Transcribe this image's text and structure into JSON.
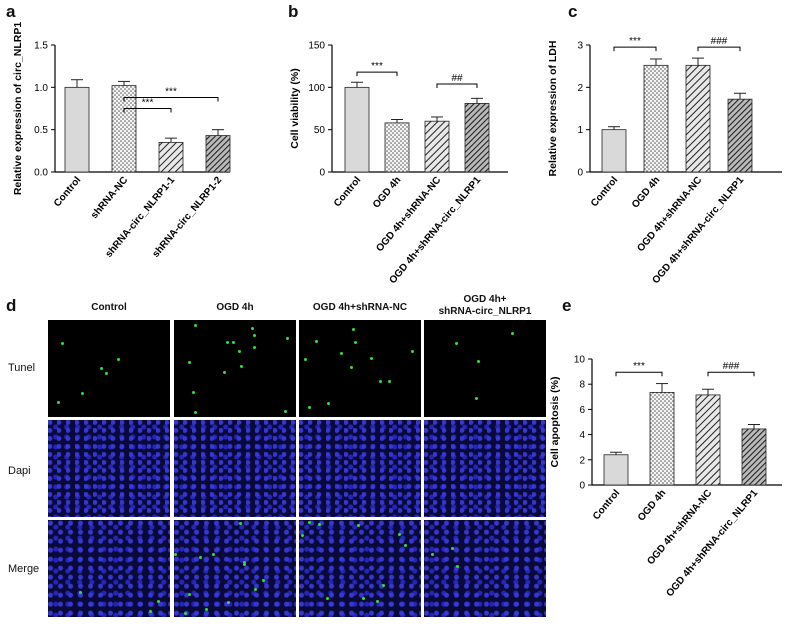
{
  "panels": {
    "a": "a",
    "b": "b",
    "c": "c",
    "d": "d",
    "e": "e"
  },
  "chart_data": [
    {
      "id": "a",
      "type": "bar",
      "ylabel": "Relative  expression of circ_NLRP1",
      "ylim": [
        0,
        1.5
      ],
      "yticks": [
        "0.0",
        "0.5",
        "1.0",
        "1.5"
      ],
      "categories": [
        "Control",
        "shRNA-NC",
        "shRNA-circ_NLRP1-1",
        "shRNA-circ_NLRP1-2"
      ],
      "values": [
        1.0,
        1.02,
        0.35,
        0.43
      ],
      "errors": [
        0.09,
        0.05,
        0.05,
        0.07
      ],
      "patterns": [
        "solid",
        "dots",
        "hatch",
        "crosshatch"
      ],
      "annotations": [
        {
          "from": 1,
          "to": 2,
          "label": "***",
          "y": 0.75
        },
        {
          "from": 1,
          "to": 3,
          "label": "***",
          "y": 0.88
        }
      ]
    },
    {
      "id": "b",
      "type": "bar",
      "ylabel": "Cell viability (%)",
      "ylim": [
        0,
        150
      ],
      "yticks": [
        "0",
        "50",
        "100",
        "150"
      ],
      "categories": [
        "Control",
        "OGD 4h",
        "OGD 4h+shRNA-NC",
        "OGD 4h+shRNA-circ_NLRP1"
      ],
      "values": [
        100,
        58,
        60,
        81
      ],
      "errors": [
        6,
        4,
        5,
        6
      ],
      "patterns": [
        "solid",
        "dots",
        "hatch",
        "crosshatch"
      ],
      "annotations": [
        {
          "from": 0,
          "to": 1,
          "label": "***",
          "y": 118
        },
        {
          "from": 2,
          "to": 3,
          "label": "##",
          "y": 104
        }
      ]
    },
    {
      "id": "c",
      "type": "bar",
      "ylabel": "Relative expression of LDH",
      "ylim": [
        0,
        3
      ],
      "yticks": [
        "0",
        "1",
        "2",
        "3"
      ],
      "categories": [
        "Control",
        "OGD 4h",
        "OGD 4h+shRNA-NC",
        "OGD 4h+shRNA-circ_NLRP1"
      ],
      "values": [
        1.0,
        2.52,
        2.52,
        1.72
      ],
      "errors": [
        0.07,
        0.15,
        0.17,
        0.14
      ],
      "patterns": [
        "solid",
        "dots",
        "hatch",
        "crosshatch"
      ],
      "annotations": [
        {
          "from": 0,
          "to": 1,
          "label": "***",
          "y": 2.95
        },
        {
          "from": 2,
          "to": 3,
          "label": "###",
          "y": 2.95
        }
      ]
    },
    {
      "id": "e",
      "type": "bar",
      "ylabel": "Cell apoptosis (%)",
      "ylim": [
        0,
        10
      ],
      "yticks": [
        "0",
        "2",
        "4",
        "6",
        "8",
        "10"
      ],
      "categories": [
        "Control",
        "OGD 4h",
        "OGD 4h+shRNA-NC",
        "OGD 4h+shRNA-circ_NLRP1"
      ],
      "values": [
        2.4,
        7.35,
        7.15,
        4.45
      ],
      "errors": [
        0.2,
        0.7,
        0.45,
        0.35
      ],
      "patterns": [
        "solid",
        "dots",
        "hatch",
        "crosshatch"
      ],
      "annotations": [
        {
          "from": 0,
          "to": 1,
          "label": "***",
          "y": 8.95
        },
        {
          "from": 2,
          "to": 3,
          "label": "###",
          "y": 8.95
        }
      ]
    }
  ],
  "micrographs": {
    "columns": [
      "Control",
      "OGD 4h",
      "OGD 4h+shRNA-NC",
      "OGD 4h+\nshRNA-circ_NLRP1"
    ],
    "rows": [
      "Tunel",
      "Dapi",
      "Merge"
    ],
    "colors": {
      "nuclei": "#2a2ad8",
      "tunel_positive": "#33dd44",
      "background": "#000000"
    }
  }
}
